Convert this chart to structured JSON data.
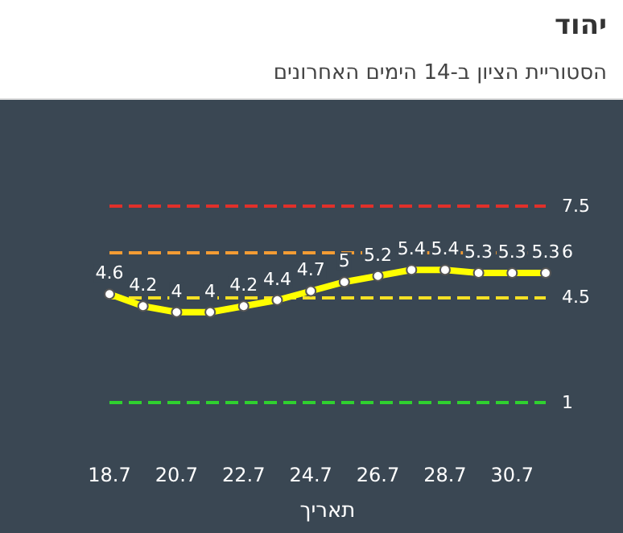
{
  "chart_data": {
    "type": "line",
    "title": "יהוד",
    "subtitle": "הסטוריית הציון ב-14 הימים האחרונים",
    "xlabel": "תאריך",
    "categories": [
      "18.7",
      null,
      "20.7",
      null,
      "22.7",
      null,
      "24.7",
      null,
      "26.7",
      null,
      "28.7",
      null,
      "30.7",
      null
    ],
    "series": [
      {
        "color": "#ffff00",
        "values": [
          4.6,
          4.2,
          4,
          4,
          4.2,
          4.4,
          4.7,
          5,
          5.2,
          5.4,
          5.4,
          5.3,
          5.3,
          5.3
        ]
      }
    ],
    "tick_labels": "x",
    "grid": false,
    "marker": "circle",
    "line_style": "solid",
    "data_labels": true,
    "ref_lines": [
      {
        "axis": "y",
        "value": 7.5,
        "label": "7.5",
        "color": "#e0302a",
        "line_style": "dashed"
      },
      {
        "axis": "y",
        "value": 6,
        "label": "6",
        "color": "#f39c34",
        "line_style": "dashed"
      },
      {
        "axis": "y",
        "value": 4.5,
        "label": "4.5",
        "color": "#f5e025",
        "line_style": "dashed"
      },
      {
        "axis": "y",
        "value": 1,
        "label": "1",
        "color": "#2fd12f",
        "line_style": "dashed"
      }
    ]
  }
}
